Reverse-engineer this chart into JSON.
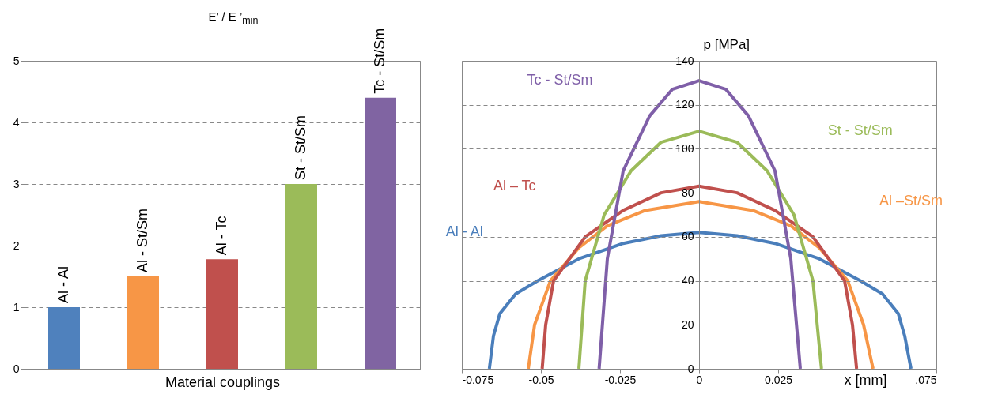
{
  "chart_data": [
    {
      "type": "bar",
      "ylabel": "E’ / E ’$_{min}$",
      "xlabel": "Material couplings",
      "categories": [
        "Al - Al",
        "Al - St/Sm",
        "Al - Tc",
        "St - St/Sm",
        "Tc - St/Sm"
      ],
      "values": [
        1,
        1.5,
        1.78,
        3,
        4.4
      ],
      "colors": [
        "#4f81bd",
        "#f79646",
        "#c0504d",
        "#9bbb59",
        "#8064a2"
      ],
      "ylim": [
        0,
        5
      ],
      "yticks": [
        0,
        1,
        2,
        3,
        4,
        5
      ],
      "grid": "y",
      "tick_labels": "y",
      "legend": false
    },
    {
      "type": "line",
      "xlabel": "x [mm]",
      "ylabel": "p [MPa]",
      "xlim": [
        -0.075,
        0.075
      ],
      "xticks": [
        -0.075,
        -0.05,
        -0.025,
        0,
        0.025,
        {
          "value": 0.075,
          "label": ".075"
        }
      ],
      "ylim": [
        0,
        140
      ],
      "yticks": [
        0,
        20,
        40,
        60,
        80,
        100,
        120,
        140
      ],
      "grid": "y",
      "legend": false,
      "marker": "none",
      "series": [
        {
          "name": "Al - Al",
          "color": "#4a7ebb",
          "x": [
            -0.0663,
            -0.065,
            -0.063,
            -0.058,
            -0.051,
            -0.038,
            -0.024,
            -0.012,
            0,
            0.012,
            0.024,
            0.038,
            0.051,
            0.058,
            0.063,
            0.065,
            0.067
          ],
          "values": [
            0,
            15,
            25,
            34,
            40,
            50,
            57,
            60.5,
            62,
            60.5,
            57,
            50,
            40,
            34,
            25,
            15,
            0
          ]
        },
        {
          "name": "Al –St/Sm",
          "color": "#f79646",
          "x": [
            -0.054,
            -0.052,
            -0.047,
            -0.038,
            -0.029,
            -0.017,
            0,
            0.017,
            0.029,
            0.038,
            0.047,
            0.052,
            0.055
          ],
          "values": [
            0,
            20,
            40,
            55,
            65,
            72,
            76,
            72,
            65,
            55,
            40,
            20,
            0
          ]
        },
        {
          "name": "Al – Tc",
          "color": "#c0504d",
          "x": [
            -0.0496,
            -0.0485,
            -0.046,
            -0.036,
            -0.024,
            -0.012,
            0,
            0.012,
            0.024,
            0.036,
            0.046,
            0.0485,
            0.0498
          ],
          "values": [
            0,
            20,
            40,
            60,
            72,
            80,
            83,
            80,
            72,
            60,
            40,
            20,
            0
          ]
        },
        {
          "name": "St - St/Sm",
          "color": "#9bbb59",
          "x": [
            -0.038,
            -0.036,
            -0.03,
            -0.0215,
            -0.012,
            0,
            0.012,
            0.0215,
            0.03,
            0.036,
            0.0387
          ],
          "values": [
            0,
            40,
            70,
            90,
            103,
            108,
            103,
            90,
            70,
            40,
            0
          ]
        },
        {
          "name": "Tc - St/Sm",
          "color": "#7f5fa8",
          "x": [
            -0.0316,
            -0.029,
            -0.024,
            -0.0156,
            -0.0085,
            0,
            0.0085,
            0.0156,
            0.024,
            0.029,
            0.032
          ],
          "values": [
            0,
            50,
            90,
            115,
            127,
            131,
            127,
            115,
            90,
            50,
            0
          ]
        }
      ]
    }
  ]
}
